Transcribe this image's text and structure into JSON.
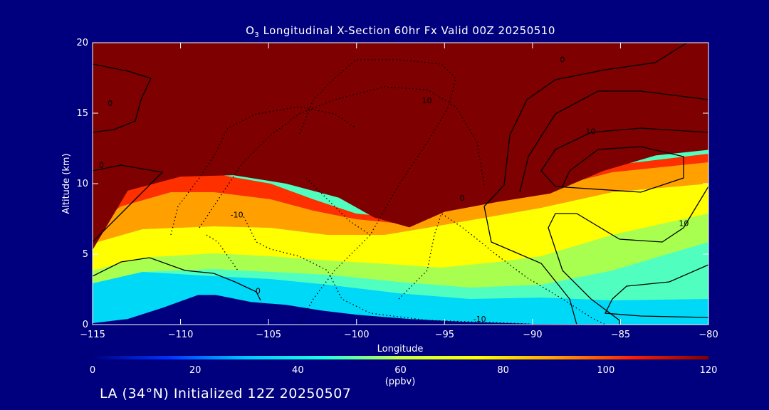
{
  "title_prefix": "O",
  "title_sub": "3",
  "title_rest": " Longitudinal X-Section 60hr  Fx Valid 00Z 20250510",
  "subtitle": "LA (34°N) Initialized 12Z 20250507",
  "chart_data": {
    "type": "heatmap",
    "variable": "O3",
    "xlabel": "Longitude",
    "ylabel": "Altitude (km)",
    "xlim": [
      -115,
      -80
    ],
    "ylim": [
      0,
      20
    ],
    "x_ticks": [
      -115,
      -110,
      -105,
      -100,
      -95,
      -90,
      -85,
      -80
    ],
    "y_ticks": [
      0,
      5,
      10,
      15,
      20
    ],
    "x_tick_labels": [
      "−115",
      "−110",
      "−105",
      "−100",
      "−95",
      "−90",
      "−85",
      "−80"
    ],
    "y_tick_labels": [
      "0",
      "5",
      "10",
      "15",
      "20"
    ],
    "tropopause_km": [
      {
        "lon": -115,
        "alt": 5.3
      },
      {
        "lon": -113,
        "alt": 9.5
      },
      {
        "lon": -110,
        "alt": 10.5
      },
      {
        "lon": -107,
        "alt": 10.6
      },
      {
        "lon": -104,
        "alt": 10.0
      },
      {
        "lon": -101,
        "alt": 9.0
      },
      {
        "lon": -99,
        "alt": 7.6
      },
      {
        "lon": -97,
        "alt": 6.9
      },
      {
        "lon": -95,
        "alt": 8.0
      },
      {
        "lon": -92,
        "alt": 8.7
      },
      {
        "lon": -89,
        "alt": 9.3
      },
      {
        "lon": -86,
        "alt": 10.9
      },
      {
        "lon": -83,
        "alt": 12.0
      },
      {
        "lon": -80,
        "alt": 12.4
      }
    ],
    "terrain_km": [
      {
        "lon": -115,
        "alt": 0.1
      },
      {
        "lon": -113,
        "alt": 0.4
      },
      {
        "lon": -111,
        "alt": 1.2
      },
      {
        "lon": -109,
        "alt": 2.1
      },
      {
        "lon": -108,
        "alt": 2.1
      },
      {
        "lon": -106,
        "alt": 1.6
      },
      {
        "lon": -104,
        "alt": 1.4
      },
      {
        "lon": -102,
        "alt": 1.0
      },
      {
        "lon": -100,
        "alt": 0.7
      },
      {
        "lon": -97,
        "alt": 0.4
      },
      {
        "lon": -94,
        "alt": 0.2
      },
      {
        "lon": -90,
        "alt": 0.05
      },
      {
        "lon": -80,
        "alt": 0.0
      }
    ],
    "contour_labels": [
      {
        "text": "0",
        "lon": -114,
        "alt": 15.5
      },
      {
        "text": "0",
        "lon": -114.5,
        "alt": 11.1
      },
      {
        "text": "0",
        "lon": -105.6,
        "alt": 2.2
      },
      {
        "text": "0",
        "lon": -94,
        "alt": 8.8
      },
      {
        "text": "0",
        "lon": -88.3,
        "alt": 18.6
      },
      {
        "text": "10",
        "lon": -96,
        "alt": 15.7
      },
      {
        "text": "-10",
        "lon": -106.8,
        "alt": 7.6
      },
      {
        "text": "-10",
        "lon": -93,
        "alt": 0.2
      },
      {
        "text": "10",
        "lon": -86.7,
        "alt": 13.5
      },
      {
        "text": "10",
        "lon": -81.4,
        "alt": 7.0
      }
    ],
    "colorbar": {
      "min": 0,
      "max": 120,
      "ticks": [
        0,
        20,
        40,
        60,
        80,
        100,
        120
      ],
      "tick_labels": [
        "0",
        "20",
        "40",
        "60",
        "80",
        "100",
        "120"
      ],
      "unit": "(ppbv)",
      "colors": [
        "#00007e",
        "#0033ff",
        "#00c8ff",
        "#20ffe0",
        "#c8ff40",
        "#ffff00",
        "#ffa000",
        "#ff2000",
        "#7e0000"
      ]
    }
  }
}
